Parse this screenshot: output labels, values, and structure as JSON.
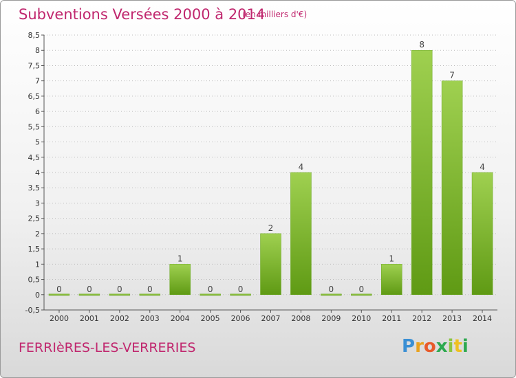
{
  "header": {
    "title": "Subventions Versées 2000 à 2014",
    "unit": "(en milliers d'€)"
  },
  "footer": {
    "commune": "FERRIèRES-LES-VERRERIES",
    "logo_letters": [
      "P",
      "r",
      "o",
      "x",
      "i",
      "t",
      "i"
    ]
  },
  "colors": {
    "title": "#c0276e",
    "bar_light": "#9fd050",
    "bar_dark": "#5f9a14",
    "grid": "#bbbbbb"
  },
  "chart_data": {
    "type": "bar",
    "title": "Subventions Versées 2000 à 2014",
    "xlabel": "",
    "ylabel": "",
    "categories": [
      "2000",
      "2001",
      "2002",
      "2003",
      "2004",
      "2005",
      "2006",
      "2007",
      "2008",
      "2009",
      "2010",
      "2011",
      "2012",
      "2013",
      "2014"
    ],
    "values": [
      0,
      0,
      0,
      0,
      1,
      0,
      0,
      2,
      4,
      0,
      0,
      1,
      8,
      7,
      4
    ],
    "ylim": [
      -0.5,
      8.5
    ],
    "yticks": [
      "-0,5",
      "0",
      "0,5",
      "1",
      "1,5",
      "2",
      "2,5",
      "3",
      "3,5",
      "4",
      "4,5",
      "5",
      "5,5",
      "6",
      "6,5",
      "7",
      "7,5",
      "8",
      "8,5"
    ],
    "ytick_values": [
      -0.5,
      0,
      0.5,
      1,
      1.5,
      2,
      2.5,
      3,
      3.5,
      4,
      4.5,
      5,
      5.5,
      6,
      6.5,
      7,
      7.5,
      8,
      8.5
    ],
    "grid": true,
    "data_labels": true
  }
}
